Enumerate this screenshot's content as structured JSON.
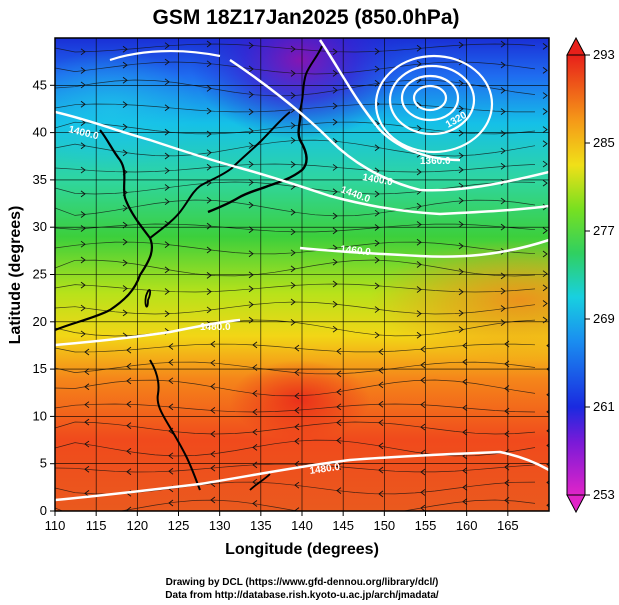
{
  "title": "GSM 18Z17Jan2025 (850.0hPa)",
  "xlabel": "Longitude (degrees)",
  "ylabel": "Latitude  (degrees)",
  "x_ticks": [
    "110",
    "115",
    "120",
    "125",
    "130",
    "135",
    "140",
    "145",
    "150",
    "155",
    "160",
    "165"
  ],
  "y_ticks": [
    "0",
    "5",
    "10",
    "15",
    "20",
    "25",
    "30",
    "35",
    "40",
    "45"
  ],
  "colorbar_ticks": [
    "253",
    "261",
    "269",
    "277",
    "285",
    "293"
  ],
  "contour_labels": [
    "1400.0",
    "1400.0",
    "1440.0",
    "1460.0",
    "1480.0",
    "1480.0",
    "1320",
    "1360.0"
  ],
  "credits": [
    "Drawing by DCL (https://www.gfd-dennou.org/library/dcl/)",
    "Data from http://database.rish.kyoto-u.ac.jp/arch/jmadata/"
  ],
  "chart_data": {
    "type": "heatmap",
    "field": "850hPa temperature (K) with geopotential height contours and wind streamlines",
    "xlim": [
      110,
      170
    ],
    "ylim": [
      0,
      50
    ],
    "colorbar_range": [
      253,
      293
    ],
    "grid": true
  }
}
